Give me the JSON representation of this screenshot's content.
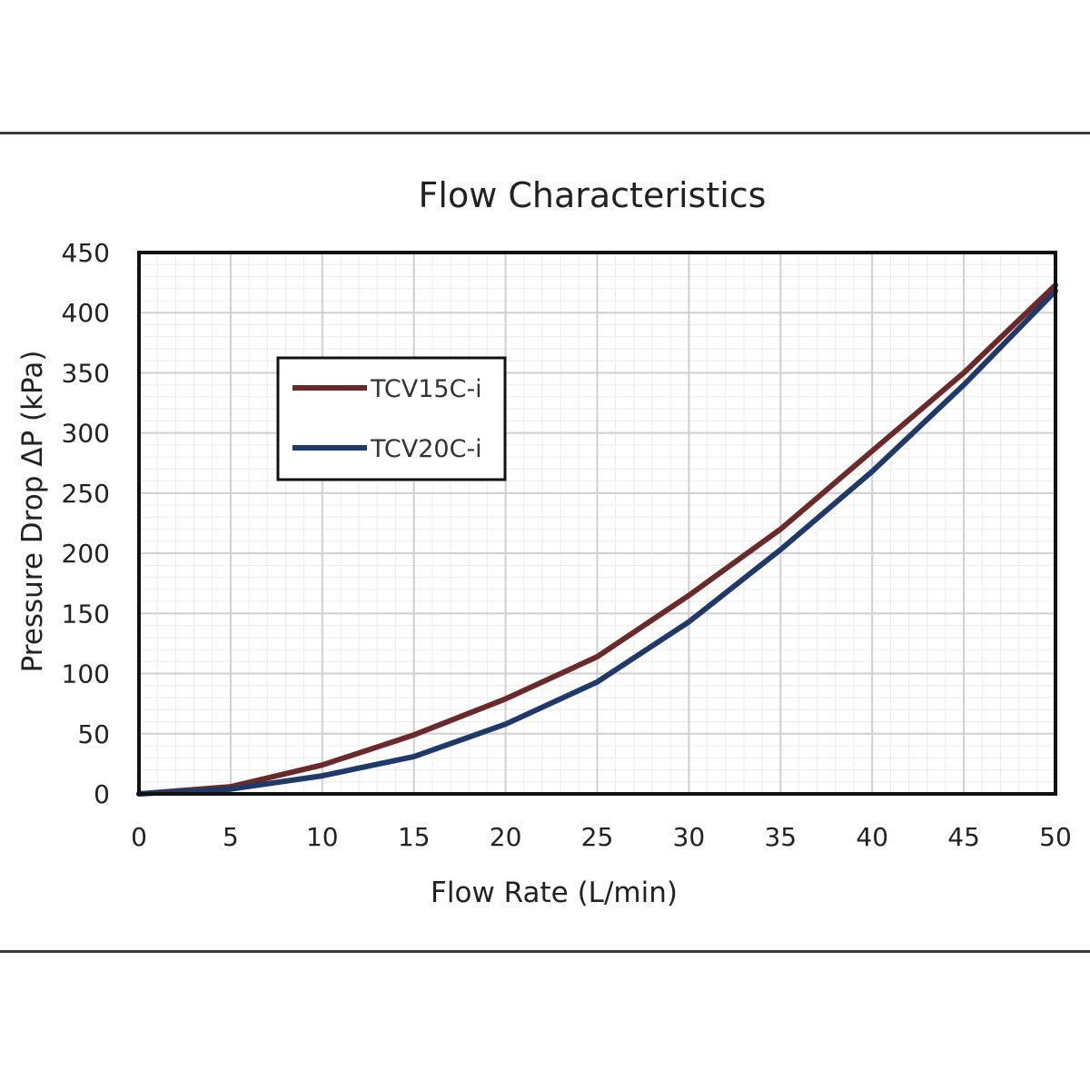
{
  "colors": {
    "grid_major": "#cfcfcf",
    "grid_minor": "#ececec",
    "frame": "#111111",
    "rule": "#3a3a3a"
  },
  "chart_data": {
    "type": "line",
    "title": "Flow Characteristics",
    "xlabel": "Flow Rate (L/min)",
    "ylabel": "Pressure Drop ΔP (kPa)",
    "xlim": [
      0,
      50
    ],
    "ylim": [
      0,
      450
    ],
    "x_ticks": [
      0,
      5,
      10,
      15,
      20,
      25,
      30,
      35,
      40,
      45,
      50
    ],
    "y_ticks": [
      0,
      50,
      100,
      150,
      200,
      250,
      300,
      350,
      400,
      450
    ],
    "grid": true,
    "legend_position": "upper-left",
    "x": [
      0,
      5,
      10,
      15,
      20,
      25,
      30,
      35,
      40,
      45,
      50
    ],
    "series": [
      {
        "name": "TCV15C-i",
        "color": "#6b2a2a",
        "values": [
          0,
          6,
          24,
          49,
          79,
          114,
          165,
          220,
          285,
          350,
          423
        ]
      },
      {
        "name": "TCV20C-i",
        "color": "#1f3a68",
        "values": [
          0,
          4,
          15,
          31,
          58,
          93,
          143,
          203,
          268,
          340,
          418
        ]
      }
    ]
  }
}
